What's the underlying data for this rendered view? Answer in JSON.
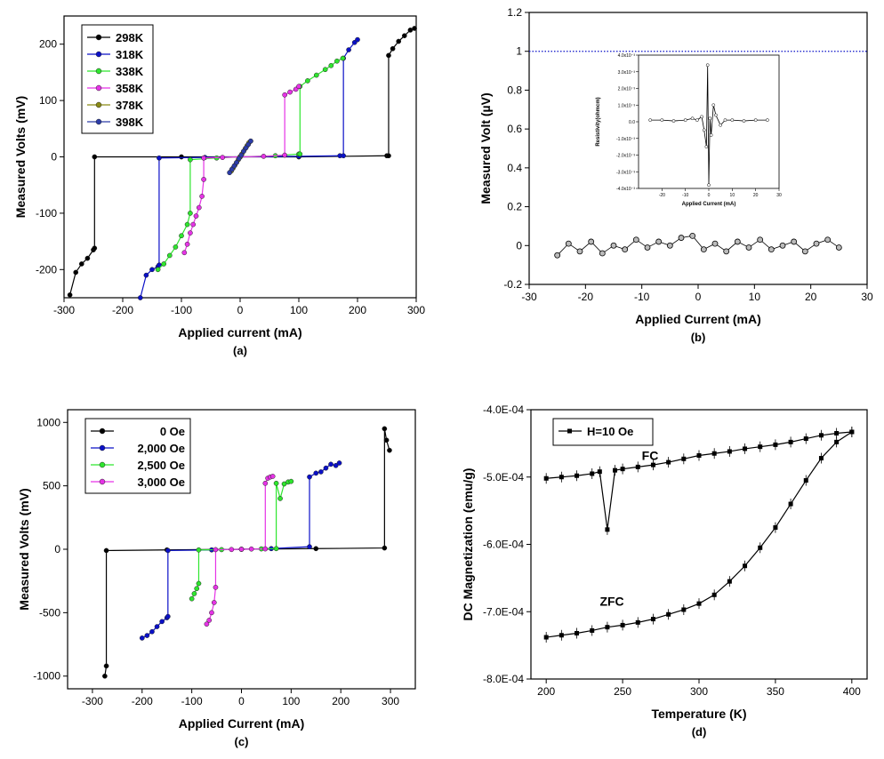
{
  "chart_data": [
    {
      "type": "line",
      "panel_label": "(a)",
      "xlabel": "Applied current (mA)",
      "ylabel": "Measured Volts (mV)",
      "xlim": [
        -300,
        300
      ],
      "ylim": [
        -250,
        250
      ],
      "xticks": [
        -300,
        -200,
        -100,
        0,
        100,
        200,
        300
      ],
      "yticks": [
        -200,
        -100,
        0,
        100,
        200
      ],
      "legend": "top-left",
      "series": [
        {
          "name": "298K",
          "color": "#000000",
          "x": [
            -290,
            -280,
            -270,
            -260,
            -250,
            -248,
            -248,
            -100,
            0,
            100,
            250,
            253,
            253,
            260,
            270,
            280,
            290,
            297
          ],
          "y": [
            -245,
            -205,
            -190,
            -180,
            -165,
            -162,
            0,
            0,
            0,
            0,
            2,
            2,
            180,
            192,
            205,
            215,
            225,
            228
          ]
        },
        {
          "name": "318K",
          "color": "#0a10c8",
          "x": [
            -170,
            -160,
            -150,
            -140,
            -138,
            -138,
            -60,
            0,
            100,
            170,
            176,
            176,
            185,
            195,
            200
          ],
          "y": [
            -250,
            -210,
            -200,
            -195,
            -192,
            -2,
            -1,
            0,
            1,
            2,
            2,
            175,
            190,
            203,
            208
          ]
        },
        {
          "name": "338K",
          "color": "#2ee62e",
          "x": [
            -140,
            -130,
            -120,
            -110,
            -100,
            -90,
            -85,
            -85,
            -40,
            0,
            60,
            100,
            102,
            102,
            115,
            130,
            145,
            155,
            165,
            175
          ],
          "y": [
            -200,
            -190,
            -175,
            -160,
            -140,
            -120,
            -100,
            -5,
            -2,
            0,
            2,
            5,
            5,
            125,
            135,
            145,
            155,
            162,
            170,
            175
          ]
        },
        {
          "name": "358K",
          "color": "#e633e6",
          "x": [
            -95,
            -90,
            -85,
            -80,
            -75,
            -70,
            -65,
            -62,
            -62,
            -30,
            0,
            40,
            76,
            76,
            85,
            95,
            100
          ],
          "y": [
            -170,
            -155,
            -135,
            -120,
            -105,
            -90,
            -70,
            -40,
            -2,
            -1,
            0,
            1,
            3,
            110,
            115,
            120,
            125
          ]
        },
        {
          "name": "378K",
          "color": "#8a8a14",
          "x": [
            -15,
            -12,
            -9,
            -6,
            -3,
            0,
            3,
            6,
            9,
            12,
            15,
            18
          ],
          "y": [
            -25,
            -20,
            -15,
            -10,
            -5,
            0,
            5,
            10,
            15,
            20,
            25,
            28
          ]
        },
        {
          "name": "398K",
          "color": "#2c3ca8",
          "x": [
            -18,
            -14,
            -10,
            -6,
            -2,
            2,
            6,
            10,
            14,
            18
          ],
          "y": [
            -28,
            -22,
            -16,
            -10,
            -3,
            3,
            10,
            16,
            22,
            28
          ]
        }
      ]
    },
    {
      "type": "scatter",
      "panel_label": "(b)",
      "xlabel": "Applied Current (mA)",
      "ylabel": "Measured Volt (µV)",
      "xlim": [
        -30,
        30
      ],
      "ylim": [
        -0.2,
        1.2
      ],
      "xticks": [
        -30,
        -20,
        -10,
        0,
        10,
        20,
        30
      ],
      "yticks": [
        -0.2,
        0.0,
        0.2,
        0.4,
        0.6,
        0.8,
        1.0,
        1.2
      ],
      "reference_line": {
        "y": 1.0,
        "style": "dotted",
        "color": "#0a10c8"
      },
      "series": [
        {
          "color": "#000000",
          "x": [
            -25,
            -23,
            -21,
            -19,
            -17,
            -15,
            -13,
            -11,
            -9,
            -7,
            -5,
            -3,
            -1,
            1,
            3,
            5,
            7,
            9,
            11,
            13,
            15,
            17,
            19,
            21,
            23,
            25
          ],
          "y": [
            -0.05,
            0.01,
            -0.03,
            0.02,
            -0.04,
            0.0,
            -0.02,
            0.03,
            -0.01,
            0.02,
            0.0,
            0.04,
            0.05,
            -0.02,
            0.01,
            -0.03,
            0.02,
            -0.01,
            0.03,
            -0.02,
            0.0,
            0.02,
            -0.03,
            0.01,
            0.03,
            -0.01
          ]
        }
      ],
      "inset": {
        "xlabel": "Applied Current (mA)",
        "ylabel": "Resistivity(ohmcm)",
        "xlim": [
          -30,
          30
        ],
        "ylim": [
          -0.004,
          0.004
        ],
        "xticks": [
          -20,
          -10,
          0,
          10,
          20,
          30
        ],
        "yticks": [
          "-4.0x10⁻³",
          "-3.0x10⁻³",
          "-2.0x10⁻³",
          "-1.0x10⁻³",
          "0.0",
          "1.0x10⁻³",
          "2.0x10⁻³",
          "3.0x10⁻³",
          "4.0x10⁻³"
        ],
        "x": [
          -25,
          -20,
          -15,
          -10,
          -7,
          -5,
          -3,
          -2,
          -1,
          -0.5,
          0,
          0.5,
          1,
          2,
          3,
          5,
          7,
          10,
          15,
          20,
          25
        ],
        "y": [
          0.0001,
          0.0001,
          5e-05,
          0.0001,
          0.0002,
          0.0001,
          0.0003,
          -0.0005,
          -0.0015,
          0.0034,
          -0.0038,
          0.0002,
          -0.0008,
          0.001,
          0.0004,
          -0.0002,
          0.0001,
          0.0001,
          5e-05,
          0.0001,
          0.0001
        ]
      }
    },
    {
      "type": "line",
      "panel_label": "(c)",
      "xlabel": "Applied Current (mA)",
      "ylabel": "Measured Volts (mV)",
      "xlim": [
        -350,
        350
      ],
      "ylim": [
        -1100,
        1100
      ],
      "xticks": [
        -300,
        -200,
        -100,
        0,
        100,
        200,
        300
      ],
      "yticks": [
        -1000,
        -500,
        0,
        500,
        1000
      ],
      "legend": "top-left",
      "series": [
        {
          "name": "0 Oe",
          "color": "#000000",
          "x": [
            -275,
            -272,
            -272,
            -150,
            0,
            150,
            288,
            288,
            292,
            298
          ],
          "y": [
            -1000,
            -920,
            -10,
            -5,
            0,
            5,
            10,
            950,
            860,
            780
          ]
        },
        {
          "name": "2,000 Oe",
          "color": "#0a10c8",
          "x": [
            -200,
            -190,
            -180,
            -170,
            -160,
            -150,
            -148,
            -148,
            -60,
            0,
            60,
            137,
            137,
            150,
            160,
            170,
            180,
            190,
            197
          ],
          "y": [
            -700,
            -680,
            -650,
            -610,
            -570,
            -540,
            -530,
            -10,
            -5,
            0,
            5,
            20,
            570,
            600,
            610,
            640,
            670,
            660,
            680
          ]
        },
        {
          "name": "2,500 Oe",
          "color": "#2ee62e",
          "x": [
            -100,
            -95,
            -90,
            -86,
            -86,
            -40,
            0,
            40,
            70,
            70,
            78,
            86,
            94,
            100
          ],
          "y": [
            -390,
            -350,
            -310,
            -270,
            -5,
            -3,
            0,
            3,
            5,
            520,
            400,
            515,
            530,
            535
          ]
        },
        {
          "name": "3,000 Oe",
          "color": "#e633e6",
          "x": [
            -70,
            -65,
            -60,
            -55,
            -52,
            -52,
            -20,
            0,
            20,
            48,
            48,
            53,
            58,
            63
          ],
          "y": [
            -590,
            -560,
            -500,
            -420,
            -300,
            -3,
            -2,
            0,
            2,
            3,
            520,
            560,
            570,
            575
          ]
        }
      ]
    },
    {
      "type": "line",
      "panel_label": "(d)",
      "xlabel": "Temperature (K)",
      "ylabel": "DC Magnetization (emu/g)",
      "xlim": [
        190,
        410
      ],
      "ylim": [
        -0.0008,
        -0.0004
      ],
      "xticks": [
        200,
        250,
        300,
        350,
        400
      ],
      "yticks": [
        "-8.0E-04",
        "-7.0E-04",
        "-6.0E-04",
        "-5.0E-04",
        "-4.0E-04"
      ],
      "legend": "top-left",
      "annotations": [
        "FC",
        "ZFC"
      ],
      "series": [
        {
          "name": "H=10 Oe",
          "color": "#000000",
          "label": "FC",
          "x": [
            200,
            210,
            220,
            230,
            235,
            240,
            245,
            250,
            260,
            270,
            280,
            290,
            300,
            310,
            320,
            330,
            340,
            350,
            360,
            370,
            380,
            390,
            400
          ],
          "y": [
            -0.000502,
            -0.0005,
            -0.000498,
            -0.000495,
            -0.000492,
            -0.000578,
            -0.00049,
            -0.000488,
            -0.000485,
            -0.000482,
            -0.000478,
            -0.000473,
            -0.000468,
            -0.000465,
            -0.000462,
            -0.000458,
            -0.000455,
            -0.000452,
            -0.000448,
            -0.000443,
            -0.000438,
            -0.000435,
            -0.000433
          ]
        },
        {
          "label": "ZFC",
          "color": "#000000",
          "x": [
            200,
            210,
            220,
            230,
            240,
            250,
            260,
            270,
            280,
            290,
            300,
            310,
            320,
            330,
            340,
            350,
            360,
            370,
            380,
            390,
            400
          ],
          "y": [
            -0.000738,
            -0.000735,
            -0.000732,
            -0.000728,
            -0.000723,
            -0.00072,
            -0.000716,
            -0.000711,
            -0.000704,
            -0.000697,
            -0.000688,
            -0.000675,
            -0.000655,
            -0.000632,
            -0.000605,
            -0.000575,
            -0.00054,
            -0.000505,
            -0.000472,
            -0.000448,
            -0.000433
          ]
        }
      ]
    }
  ]
}
